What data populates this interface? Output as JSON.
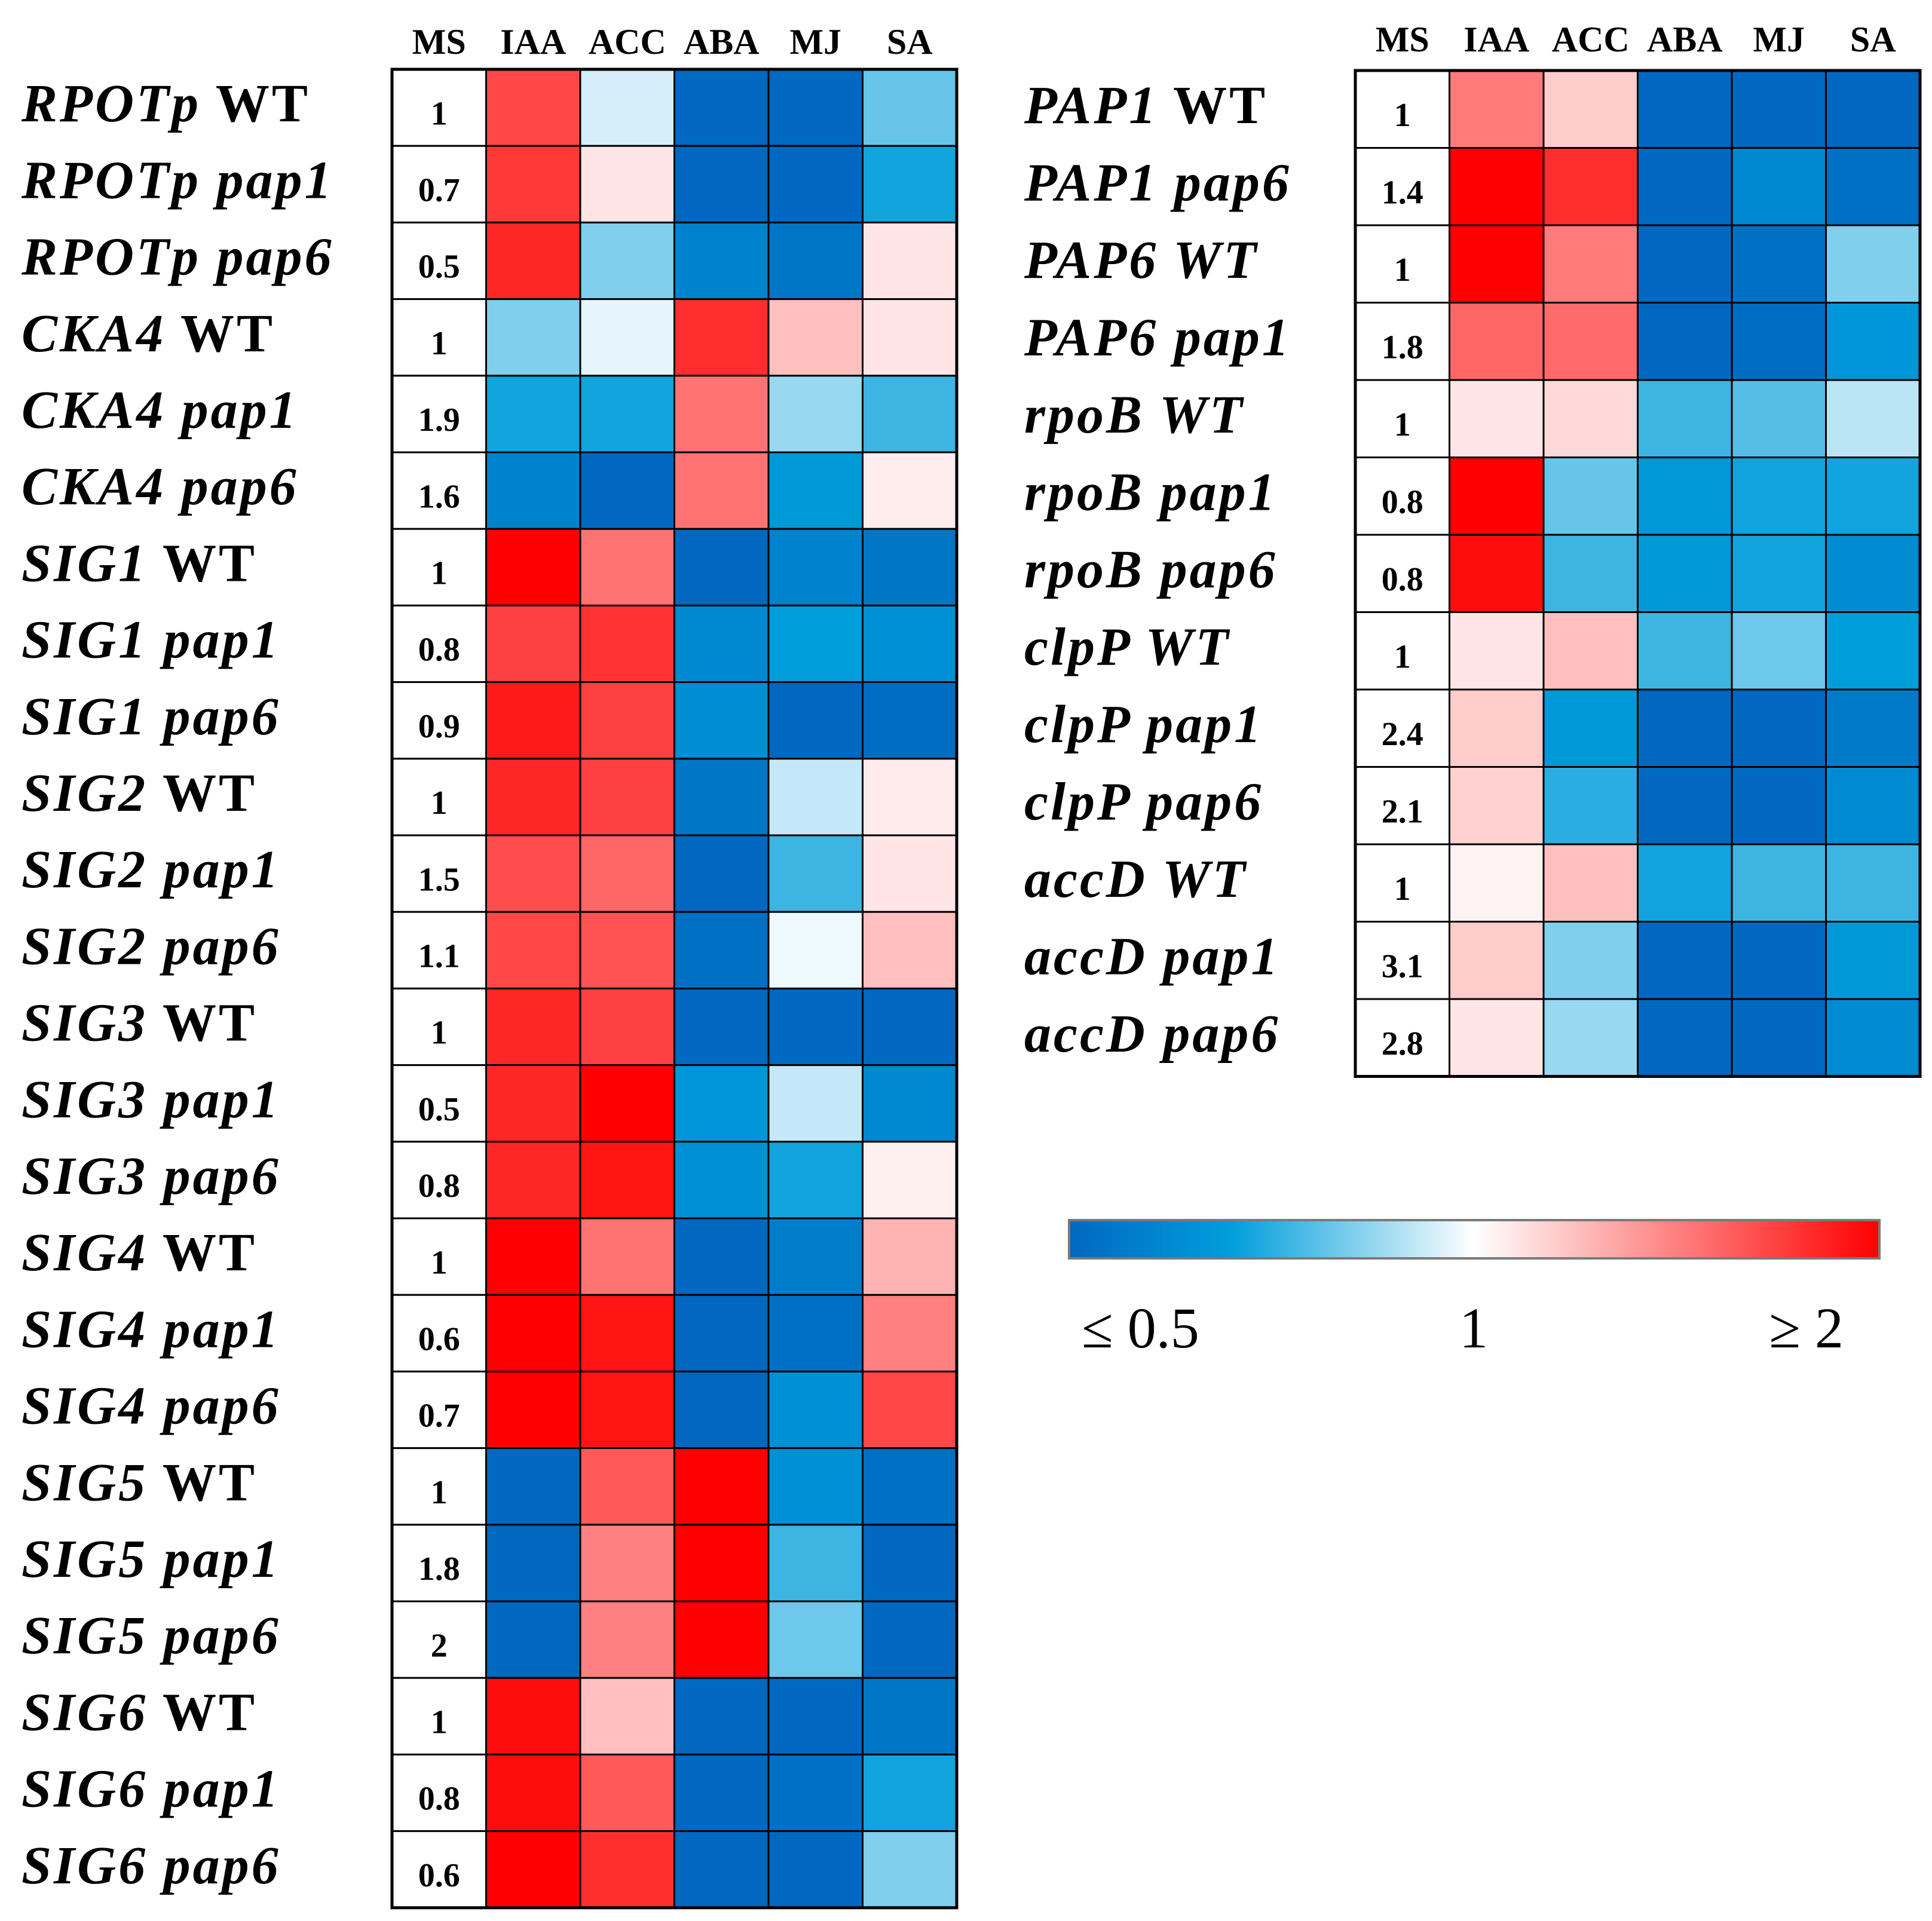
{
  "chart_data": [
    {
      "type": "heatmap",
      "columns": [
        "MS",
        "IAA",
        "ACC",
        "ABA",
        "MJ",
        "SA"
      ],
      "rows": [
        {
          "gene": "RPOTp",
          "line": "WT",
          "gene_italic": true,
          "line_italic": false,
          "values": [
            1,
            1.72,
            0.95,
            0.5,
            0.5,
            0.82
          ]
        },
        {
          "gene": "RPOTp",
          "line": "pap1",
          "gene_italic": true,
          "line_italic": true,
          "values": [
            0.7,
            1.78,
            1.1,
            0.5,
            0.5,
            0.72
          ]
        },
        {
          "gene": "RPOTp",
          "line": "pap6",
          "gene_italic": true,
          "line_italic": true,
          "values": [
            0.5,
            1.85,
            0.85,
            0.6,
            0.55,
            1.1
          ]
        },
        {
          "gene": "CKA4",
          "line": "WT",
          "gene_italic": true,
          "line_italic": false,
          "values": [
            1,
            0.85,
            0.97,
            1.82,
            1.25,
            1.1
          ]
        },
        {
          "gene": "CKA4",
          "line": "pap1",
          "gene_italic": true,
          "line_italic": true,
          "values": [
            1.9,
            0.72,
            0.72,
            1.55,
            0.88,
            0.77
          ]
        },
        {
          "gene": "CKA4",
          "line": "pap6",
          "gene_italic": true,
          "line_italic": true,
          "values": [
            1.6,
            0.6,
            0.5,
            1.55,
            0.68,
            1.07
          ]
        },
        {
          "gene": "SIG1",
          "line": "WT",
          "gene_italic": true,
          "line_italic": false,
          "values": [
            1,
            2.0,
            1.55,
            0.5,
            0.6,
            0.55
          ]
        },
        {
          "gene": "SIG1",
          "line": "pap1",
          "gene_italic": true,
          "line_italic": true,
          "values": [
            0.8,
            1.75,
            1.8,
            0.62,
            0.7,
            0.65
          ]
        },
        {
          "gene": "SIG1",
          "line": "pap6",
          "gene_italic": true,
          "line_italic": true,
          "values": [
            0.9,
            1.9,
            1.75,
            0.64,
            0.5,
            0.52
          ]
        },
        {
          "gene": "SIG2",
          "line": "WT",
          "gene_italic": true,
          "line_italic": false,
          "values": [
            1,
            1.85,
            1.75,
            0.55,
            0.93,
            1.08
          ]
        },
        {
          "gene": "SIG2",
          "line": "pap1",
          "gene_italic": true,
          "line_italic": true,
          "values": [
            1.5,
            1.7,
            1.6,
            0.5,
            0.77,
            1.1
          ]
        },
        {
          "gene": "SIG2",
          "line": "pap6",
          "gene_italic": true,
          "line_italic": true,
          "values": [
            1.1,
            1.72,
            1.68,
            0.53,
            0.98,
            1.25
          ]
        },
        {
          "gene": "SIG3",
          "line": "WT",
          "gene_italic": true,
          "line_italic": false,
          "values": [
            1,
            1.85,
            1.75,
            0.5,
            0.5,
            0.5
          ]
        },
        {
          "gene": "SIG3",
          "line": "pap1",
          "gene_italic": true,
          "line_italic": true,
          "values": [
            0.5,
            1.85,
            2.0,
            0.67,
            0.93,
            0.62
          ]
        },
        {
          "gene": "SIG3",
          "line": "pap6",
          "gene_italic": true,
          "line_italic": true,
          "values": [
            0.8,
            1.85,
            1.92,
            0.65,
            0.72,
            1.06
          ]
        },
        {
          "gene": "SIG4",
          "line": "WT",
          "gene_italic": true,
          "line_italic": false,
          "values": [
            1,
            2.0,
            1.55,
            0.5,
            0.58,
            1.3
          ]
        },
        {
          "gene": "SIG4",
          "line": "pap1",
          "gene_italic": true,
          "line_italic": true,
          "values": [
            0.6,
            2.0,
            1.92,
            0.5,
            0.53,
            1.5
          ]
        },
        {
          "gene": "SIG4",
          "line": "pap6",
          "gene_italic": true,
          "line_italic": true,
          "values": [
            0.7,
            2.0,
            1.92,
            0.5,
            0.65,
            1.72
          ]
        },
        {
          "gene": "SIG5",
          "line": "WT",
          "gene_italic": true,
          "line_italic": false,
          "values": [
            1,
            0.5,
            1.65,
            2.0,
            0.65,
            0.53
          ]
        },
        {
          "gene": "SIG5",
          "line": "pap1",
          "gene_italic": true,
          "line_italic": true,
          "values": [
            1.8,
            0.5,
            1.5,
            2.0,
            0.77,
            0.5
          ]
        },
        {
          "gene": "SIG5",
          "line": "pap6",
          "gene_italic": true,
          "line_italic": true,
          "values": [
            2,
            0.5,
            1.5,
            2.0,
            0.83,
            0.5
          ]
        },
        {
          "gene": "SIG6",
          "line": "WT",
          "gene_italic": true,
          "line_italic": false,
          "values": [
            1,
            1.95,
            1.25,
            0.5,
            0.5,
            0.55
          ]
        },
        {
          "gene": "SIG6",
          "line": "pap1",
          "gene_italic": true,
          "line_italic": true,
          "values": [
            0.8,
            1.95,
            1.65,
            0.5,
            0.53,
            0.72
          ]
        },
        {
          "gene": "SIG6",
          "line": "pap6",
          "gene_italic": true,
          "line_italic": true,
          "values": [
            0.6,
            2.0,
            1.82,
            0.5,
            0.5,
            0.85
          ]
        }
      ]
    },
    {
      "type": "heatmap",
      "columns": [
        "MS",
        "IAA",
        "ACC",
        "ABA",
        "MJ",
        "SA"
      ],
      "rows": [
        {
          "gene": "PAP1",
          "line": "WT",
          "gene_italic": true,
          "line_italic": false,
          "values": [
            1,
            1.52,
            1.2,
            0.5,
            0.5,
            0.5
          ]
        },
        {
          "gene": "PAP1",
          "line": "pap6",
          "gene_italic": true,
          "line_italic": true,
          "values": [
            1.4,
            2.0,
            1.82,
            0.5,
            0.62,
            0.53
          ]
        },
        {
          "gene": "PAP6",
          "line": "WT",
          "gene_italic": true,
          "line_italic": true,
          "values": [
            1,
            2.0,
            1.52,
            0.5,
            0.53,
            0.85
          ]
        },
        {
          "gene": "PAP6",
          "line": "pap1",
          "gene_italic": true,
          "line_italic": true,
          "values": [
            1.8,
            1.6,
            1.58,
            0.5,
            0.52,
            0.67
          ]
        },
        {
          "gene": "rpoB",
          "line": "WT",
          "gene_italic": true,
          "line_italic": true,
          "values": [
            1,
            1.1,
            1.15,
            0.77,
            0.8,
            0.92
          ]
        },
        {
          "gene": "rpoB",
          "line": "pap1",
          "gene_italic": true,
          "line_italic": true,
          "values": [
            0.8,
            2.0,
            0.82,
            0.68,
            0.72,
            0.72
          ]
        },
        {
          "gene": "rpoB",
          "line": "pap6",
          "gene_italic": true,
          "line_italic": true,
          "values": [
            0.8,
            1.95,
            0.77,
            0.68,
            0.72,
            0.63
          ]
        },
        {
          "gene": "clpP",
          "line": "WT",
          "gene_italic": true,
          "line_italic": true,
          "values": [
            1,
            1.1,
            1.25,
            0.77,
            0.83,
            0.7
          ]
        },
        {
          "gene": "clpP",
          "line": "pap1",
          "gene_italic": true,
          "line_italic": true,
          "values": [
            2.4,
            1.2,
            0.68,
            0.5,
            0.5,
            0.57
          ]
        },
        {
          "gene": "clpP",
          "line": "pap6",
          "gene_italic": true,
          "line_italic": true,
          "values": [
            2.1,
            1.18,
            0.75,
            0.5,
            0.5,
            0.63
          ]
        },
        {
          "gene": "accD",
          "line": "WT",
          "gene_italic": true,
          "line_italic": true,
          "values": [
            1,
            1.05,
            1.25,
            0.72,
            0.77,
            0.77
          ]
        },
        {
          "gene": "accD",
          "line": "pap1",
          "gene_italic": true,
          "line_italic": true,
          "values": [
            3.1,
            1.2,
            0.85,
            0.5,
            0.5,
            0.68
          ]
        },
        {
          "gene": "accD",
          "line": "pap6",
          "gene_italic": true,
          "line_italic": true,
          "values": [
            2.8,
            1.1,
            0.88,
            0.5,
            0.5,
            0.63
          ]
        }
      ]
    }
  ],
  "legend": {
    "min_label": "≤ 0.5",
    "mid_label": "1",
    "max_label": "≥ 2",
    "min_value": 0.5,
    "mid_value": 1,
    "max_value": 2,
    "colors": {
      "low": "#0068c0",
      "low_mid": "#009edb",
      "near_one": "#ffffff",
      "high": "#ff0000"
    }
  }
}
